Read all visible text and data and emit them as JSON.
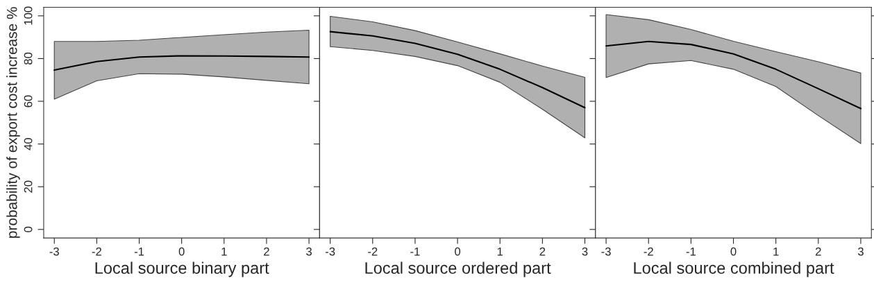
{
  "chart_data": [
    {
      "type": "line",
      "xlabel": "Local source binary part",
      "ylabel": "probability of export cost increase %",
      "x": [
        -3,
        -2,
        -1,
        0,
        1,
        2,
        3
      ],
      "xlim": [
        -3.25,
        3.25
      ],
      "xticks": [
        -3,
        -2,
        -1,
        0,
        1,
        2,
        3
      ],
      "ylim": [
        -4,
        104
      ],
      "yticks": [
        0,
        20,
        40,
        60,
        80,
        100
      ],
      "grid": false,
      "legend": false,
      "marker": "none",
      "line_style": "solid",
      "series": [
        {
          "color": "#000000",
          "values": [
            74.6,
            78.6,
            80.7,
            81.3,
            81.2,
            81.0,
            80.7
          ],
          "lower": [
            61.0,
            69.6,
            72.9,
            72.7,
            71.4,
            69.8,
            68.2
          ],
          "upper": [
            88.0,
            88.0,
            88.6,
            89.9,
            91.2,
            92.4,
            93.3
          ]
        }
      ]
    },
    {
      "type": "line",
      "xlabel": "Local source ordered part",
      "x": [
        -3,
        -2,
        -1,
        0,
        1,
        2,
        3
      ],
      "xlim": [
        -3.25,
        3.25
      ],
      "xticks": [
        -3,
        -2,
        -1,
        0,
        1,
        2,
        3
      ],
      "ylim": [
        -4,
        104
      ],
      "yticks": [
        0,
        20,
        40,
        60,
        80,
        100
      ],
      "tick_labels": "x",
      "grid": false,
      "legend": false,
      "marker": "none",
      "line_style": "solid",
      "series": [
        {
          "color": "#000000",
          "values": [
            92.6,
            90.6,
            87.1,
            82.0,
            75.0,
            66.4,
            57.0
          ],
          "lower": [
            85.6,
            83.8,
            81.0,
            76.7,
            68.9,
            56.3,
            42.9
          ],
          "upper": [
            99.8,
            97.2,
            93.1,
            87.8,
            82.2,
            76.5,
            71.2
          ]
        }
      ]
    },
    {
      "type": "line",
      "xlabel": "Local source combined part",
      "x": [
        -3,
        -2,
        -1,
        0,
        1,
        2,
        3
      ],
      "xlim": [
        -3.25,
        3.25
      ],
      "xticks": [
        -3,
        -2,
        -1,
        0,
        1,
        2,
        3
      ],
      "ylim": [
        -4,
        104
      ],
      "yticks": [
        0,
        20,
        40,
        60,
        80,
        100
      ],
      "tick_labels": "x",
      "grid": false,
      "legend": false,
      "marker": "none",
      "line_style": "solid",
      "series": [
        {
          "color": "#000000",
          "values": [
            85.9,
            88.0,
            86.6,
            82.2,
            75.0,
            65.9,
            56.6
          ],
          "lower": [
            71.1,
            77.5,
            79.1,
            75.0,
            66.9,
            53.3,
            40.2
          ],
          "upper": [
            100.6,
            98.2,
            93.6,
            88.1,
            83.2,
            78.5,
            73.2
          ]
        }
      ]
    }
  ]
}
